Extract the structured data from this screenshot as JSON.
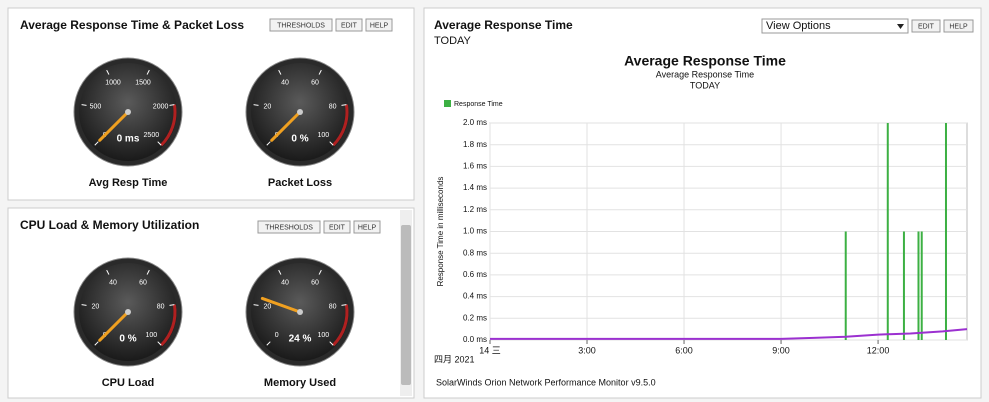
{
  "left_panels": [
    {
      "title": "Average Response Time & Packet Loss",
      "buttons": [
        "THRESHOLDS",
        "EDIT",
        "HELP"
      ],
      "gauges": [
        {
          "title": "Avg Resp Time",
          "ticks": [
            0,
            500,
            1000,
            1500,
            2000,
            2500
          ],
          "value": 0,
          "value_label": "0 ms"
        },
        {
          "title": "Packet Loss",
          "ticks": [
            0,
            20,
            40,
            60,
            80,
            100
          ],
          "value": 0,
          "value_label": "0 %"
        }
      ]
    },
    {
      "title": "CPU Load & Memory Utilization",
      "buttons": [
        "THRESHOLDS",
        "EDIT",
        "HELP"
      ],
      "gauges": [
        {
          "title": "CPU Load",
          "ticks": [
            0,
            20,
            40,
            60,
            80,
            100
          ],
          "value": 0,
          "value_label": "0 %"
        },
        {
          "title": "Memory Used",
          "ticks": [
            0,
            20,
            40,
            60,
            80,
            100
          ],
          "value": 24,
          "value_label": "24 %"
        }
      ]
    }
  ],
  "right_panel": {
    "title": "Average Response Time",
    "subtitle": "TODAY",
    "dropdown": "View Options",
    "buttons": [
      "EDIT",
      "HELP"
    ],
    "footer": "SolarWinds Orion Network Performance Monitor v9.5.0",
    "chart_data": {
      "type": "line",
      "title": "Average Response Time",
      "subtitle": "Average Response Time",
      "period": "TODAY",
      "ylabel": "Response Time in milliseconds",
      "date_label": "四月 2021",
      "grid": true,
      "xlim": [
        0,
        14.75
      ],
      "xticks": [
        {
          "value": 0,
          "label": "14 三"
        },
        {
          "value": 3,
          "label": "3:00"
        },
        {
          "value": 6,
          "label": "6:00"
        },
        {
          "value": 9,
          "label": "9:00"
        },
        {
          "value": 12,
          "label": "12:00"
        }
      ],
      "ylim": [
        0,
        2.0
      ],
      "yticks": [
        {
          "value": 0,
          "label": "0.0 ms"
        },
        {
          "value": 0.2,
          "label": "0.2 ms"
        },
        {
          "value": 0.4,
          "label": "0.4 ms"
        },
        {
          "value": 0.6,
          "label": "0.6 ms"
        },
        {
          "value": 0.8,
          "label": "0.8 ms"
        },
        {
          "value": 1.0,
          "label": "1.0 ms"
        },
        {
          "value": 1.2,
          "label": "1.2 ms"
        },
        {
          "value": 1.4,
          "label": "1.4 ms"
        },
        {
          "value": 1.6,
          "label": "1.6 ms"
        },
        {
          "value": 1.8,
          "label": "1.8 ms"
        },
        {
          "value": 2.0,
          "label": "2.0 ms"
        }
      ],
      "series": [
        {
          "name": "Response Time",
          "type": "bar",
          "color": "#3cb043",
          "x": [
            11.0,
            12.3,
            12.8,
            13.25,
            13.35,
            14.1
          ],
          "values": [
            1.0,
            2.0,
            1.0,
            1.0,
            1.0,
            2.0
          ]
        },
        {
          "type": "line",
          "color": "#9b30d0",
          "x": [
            0,
            3,
            6,
            9,
            10,
            11,
            12,
            13,
            14,
            14.75
          ],
          "values": [
            0.01,
            0.01,
            0.01,
            0.01,
            0.02,
            0.03,
            0.05,
            0.06,
            0.08,
            0.1
          ]
        }
      ]
    }
  }
}
